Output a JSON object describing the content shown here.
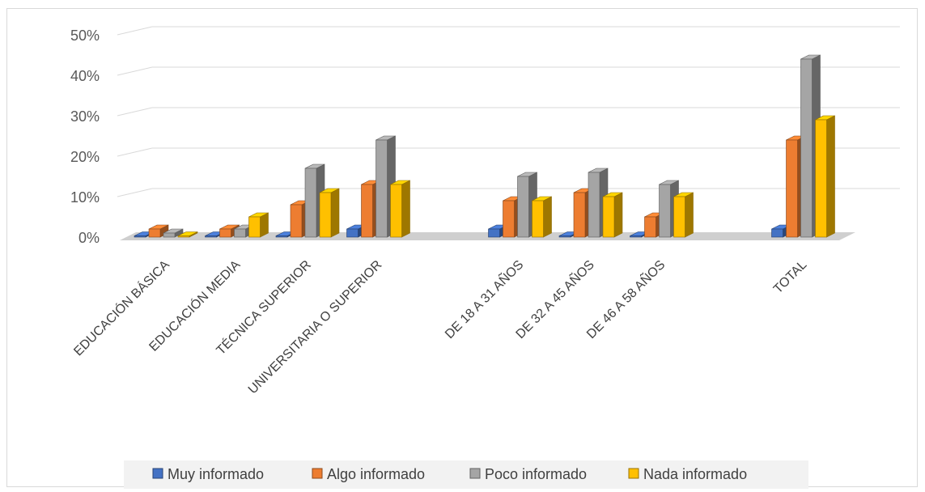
{
  "chart_data": {
    "type": "bar",
    "title": "",
    "xlabel": "",
    "ylabel": "",
    "ylim": [
      0,
      50
    ],
    "y_ticks": [
      "0%",
      "10%",
      "20%",
      "30%",
      "40%",
      "50%"
    ],
    "grid": true,
    "legend_position": "bottom",
    "categories": [
      "EDUCACIÓN BÁSICA",
      "EDUCACIÓN MEDIA",
      "TÉCNICA SUPERIOR",
      "UNIVERSITARIA O SUPERIOR",
      "",
      "DE 18 A 31 AÑOS",
      "DE 32 A 45 AÑOS",
      "DE 46 A 58 AÑOS",
      "",
      "TOTAL"
    ],
    "series": [
      {
        "name": "Muy informado",
        "color": "#4472c4",
        "values": [
          0,
          0,
          0,
          2,
          null,
          2,
          0,
          0,
          null,
          2
        ]
      },
      {
        "name": "Algo informado",
        "color": "#ed7d31",
        "values": [
          2,
          2,
          8,
          13,
          null,
          9,
          11,
          5,
          null,
          24
        ]
      },
      {
        "name": "Poco informado",
        "color": "#a5a5a5",
        "values": [
          1,
          2,
          17,
          24,
          null,
          15,
          16,
          13,
          null,
          44
        ]
      },
      {
        "name": "Nada informado",
        "color": "#ffc000",
        "values": [
          0,
          5,
          11,
          13,
          null,
          9,
          10,
          10,
          null,
          29
        ]
      }
    ]
  }
}
